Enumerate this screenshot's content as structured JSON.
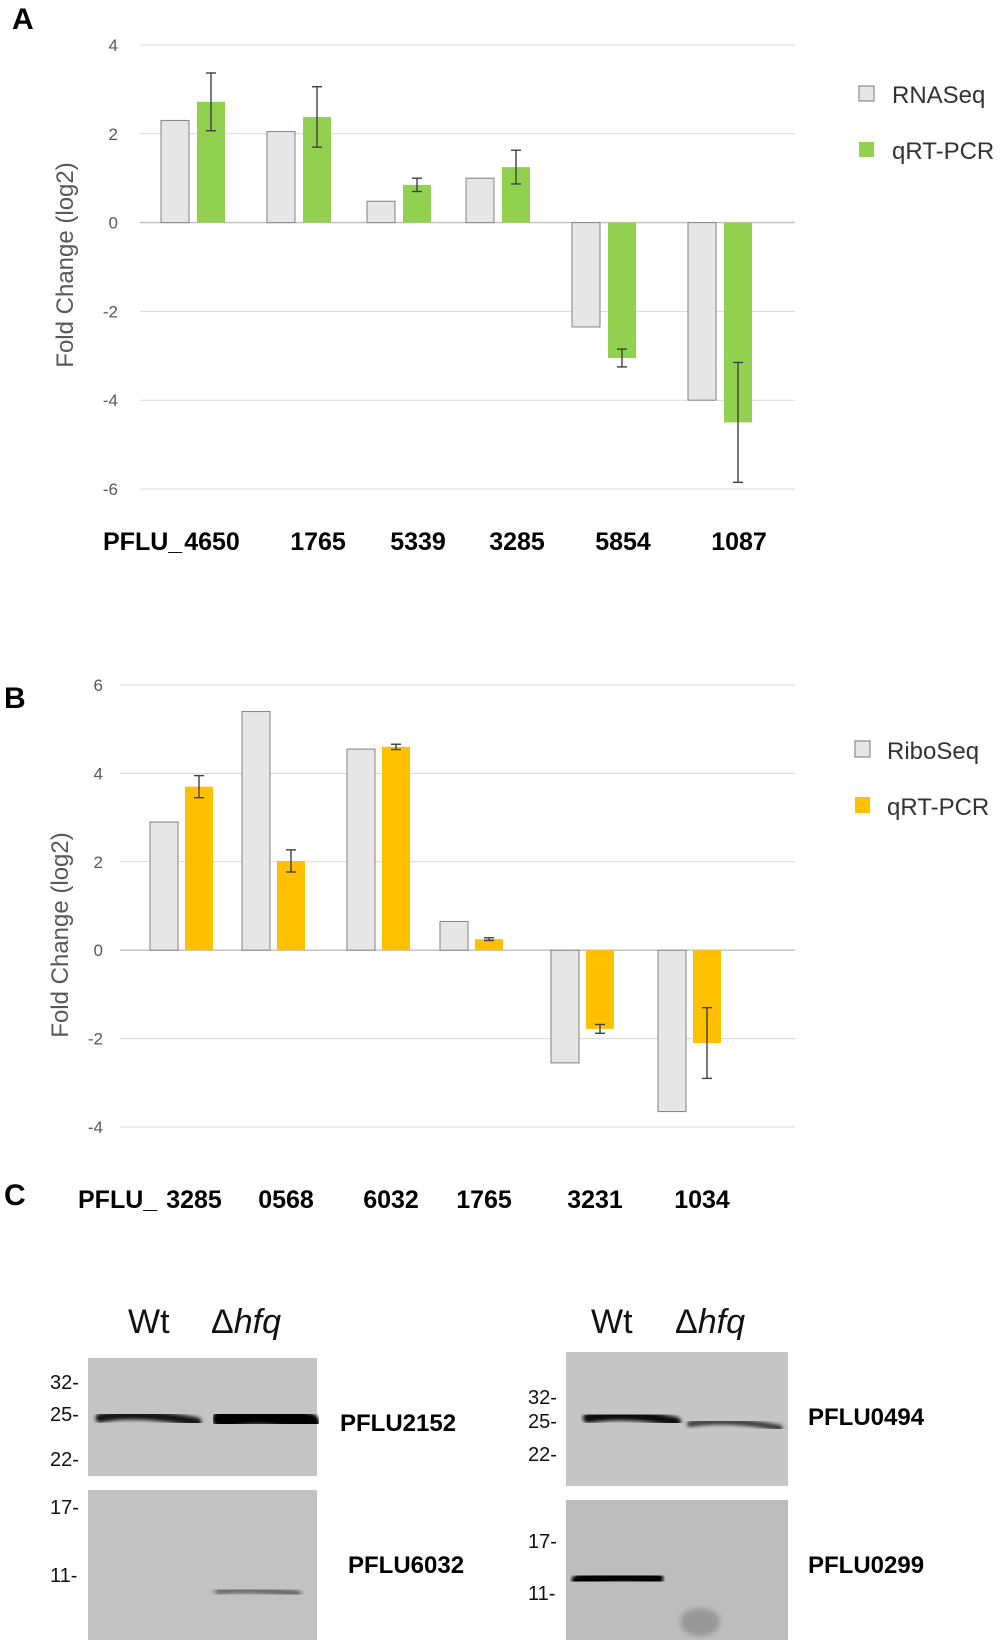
{
  "panels": {
    "a": "A",
    "b": "B",
    "c": "C"
  },
  "colors": {
    "grey": "#e6e6e6",
    "green": "#92d050",
    "orange": "#ffc000",
    "grid": "#d9d9d9",
    "axis": "#bfbfbf",
    "error": "#404040"
  },
  "chart_data": [
    {
      "type": "bar",
      "panel": "A",
      "ylabel": "Fold Change (log2)",
      "ylim": [
        -6,
        4
      ],
      "yticks": [
        4,
        2,
        0,
        -2,
        -4,
        -6
      ],
      "category_prefix": "PFLU_",
      "categories": [
        "4650",
        "1765",
        "5339",
        "3285",
        "5854",
        "1087"
      ],
      "series": [
        {
          "name": "RNASeq",
          "values": [
            2.3,
            2.05,
            0.48,
            1.0,
            -2.35,
            -4.0
          ]
        },
        {
          "name": "qRT-PCR",
          "values": [
            2.72,
            2.38,
            0.85,
            1.25,
            -3.05,
            -4.5
          ],
          "errors": [
            0.65,
            0.68,
            0.15,
            0.38,
            0.2,
            1.35
          ]
        }
      ],
      "legend": "right"
    },
    {
      "type": "bar",
      "panel": "B",
      "ylabel": "Fold Change (log2)",
      "ylim": [
        -4,
        6
      ],
      "yticks": [
        6,
        4,
        2,
        0,
        -2,
        -4
      ],
      "category_prefix": "PFLU_",
      "categories": [
        "3285",
        "0568",
        "6032",
        "1765",
        "3231",
        "1034"
      ],
      "series": [
        {
          "name": "RiboSeq",
          "values": [
            2.9,
            5.4,
            4.55,
            0.65,
            -2.55,
            -3.65
          ]
        },
        {
          "name": "qRT-PCR",
          "values": [
            3.7,
            2.02,
            4.6,
            0.25,
            -1.78,
            -2.1
          ],
          "errors": [
            0.25,
            0.25,
            0.06,
            0.03,
            0.1,
            0.8
          ]
        }
      ],
      "legend": "right"
    }
  ],
  "western": {
    "lane_wt": "Wt",
    "lane_delta": "Δ",
    "lane_hfq": "hfq",
    "left": {
      "upper": {
        "protein": "PFLU2152",
        "markers": [
          "32-",
          "25-",
          "22-"
        ],
        "band": {
          "wt": 0.6,
          "hfq": 1.0
        }
      },
      "lower": {
        "protein": "PFLU6032",
        "markers": [
          "17-",
          "11-"
        ],
        "band": {
          "wt": 0.0,
          "hfq": 0.4
        }
      }
    },
    "right": {
      "upper": {
        "protein": "PFLU0494",
        "markers": [
          "32-",
          "25-",
          "22-"
        ],
        "band": {
          "wt": 0.85,
          "hfq": 0.35
        }
      },
      "lower": {
        "protein": "PFLU0299",
        "markers": [
          "17-",
          "11-"
        ],
        "band": {
          "wt": 0.95,
          "hfq": 0.0
        }
      }
    }
  }
}
